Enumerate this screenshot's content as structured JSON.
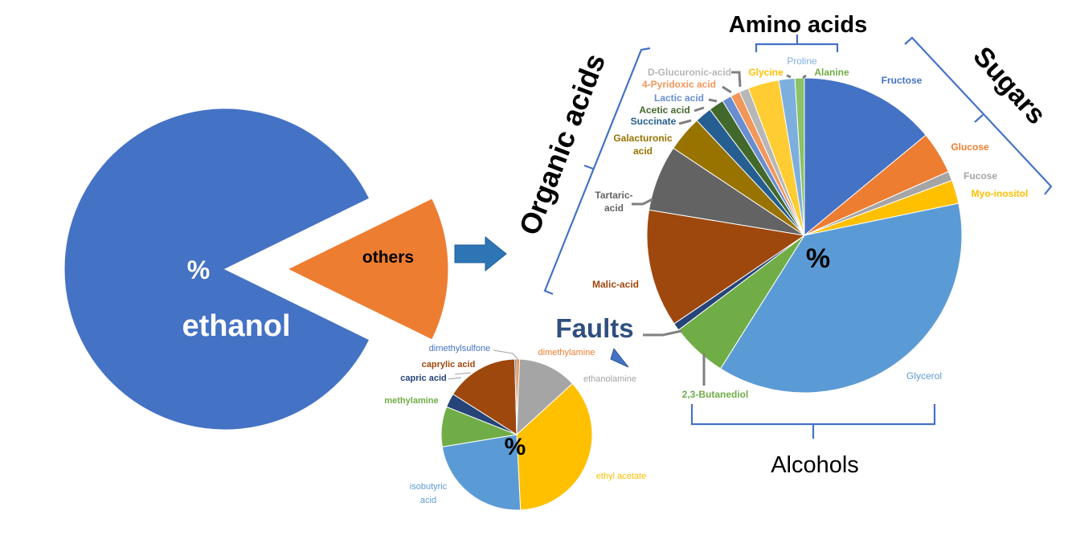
{
  "chart_data": [
    {
      "type": "pie",
      "categories": [
        "ethanol",
        "others"
      ],
      "values": [
        85.5,
        14.5
      ],
      "labels": {
        "percent": "%",
        "main": "ethanol",
        "others": "others"
      },
      "colors": [
        "#4472C4",
        "#ED7D31"
      ]
    },
    {
      "type": "pie",
      "center_label": "%",
      "categories": [
        "Fructose",
        "Glucose",
        "Fucose",
        "Myo-inositol",
        "Glycerol",
        "2,3-Butanediol",
        "",
        "Malic-acid",
        "Tartaric-acid",
        "Galacturonic acid",
        "Succinate",
        "Acetic acid",
        "Lactic acid",
        "4-Pyridoxic acid",
        "D-Glucuronic-acid",
        "Glycine",
        "Proline",
        "Alanine"
      ],
      "values": [
        14.5,
        4.5,
        1.0,
        2.5,
        38.5,
        6.0,
        0.8,
        12.5,
        7.0,
        3.8,
        1.8,
        1.6,
        1.0,
        1.0,
        1.0,
        3.3,
        1.7,
        1.0
      ],
      "colors": [
        "#4472C4",
        "#ED7D31",
        "#A5A5A5",
        "#FFC000",
        "#5B9BD5",
        "#70AD47",
        "#264478",
        "#9E480E",
        "#636363",
        "#997300",
        "#255E91",
        "#43682B",
        "#698ED0",
        "#F1975A",
        "#B7B7B7",
        "#FFCD33",
        "#7CAFDD",
        "#8CC168"
      ]
    },
    {
      "type": "pie",
      "center_label": "%",
      "categories": [
        "dimethylamine",
        "ethanolamine",
        "ethyl acetate",
        "isobutyric acid",
        "methylamine",
        "capric acid",
        "caprylic acid",
        "dimethylsulfone"
      ],
      "values": [
        0.6,
        12.6,
        36.0,
        23.2,
        8.6,
        3.0,
        15.6,
        0.4
      ],
      "colors": [
        "#ED7D31",
        "#A5A5A5",
        "#FFC000",
        "#5B9BD5",
        "#70AD47",
        "#264478",
        "#9E480E",
        "#636363"
      ]
    }
  ],
  "groups": {
    "amino_acids": "Amino acids",
    "sugars": "Sugars",
    "organic_acids": "Organic acids",
    "alcohols": "Alcohols",
    "faults": "Faults"
  },
  "colors": {
    "bracket": "#4472C4",
    "arrow": "#2E75B6",
    "faults_text": "#2F4F7F"
  }
}
